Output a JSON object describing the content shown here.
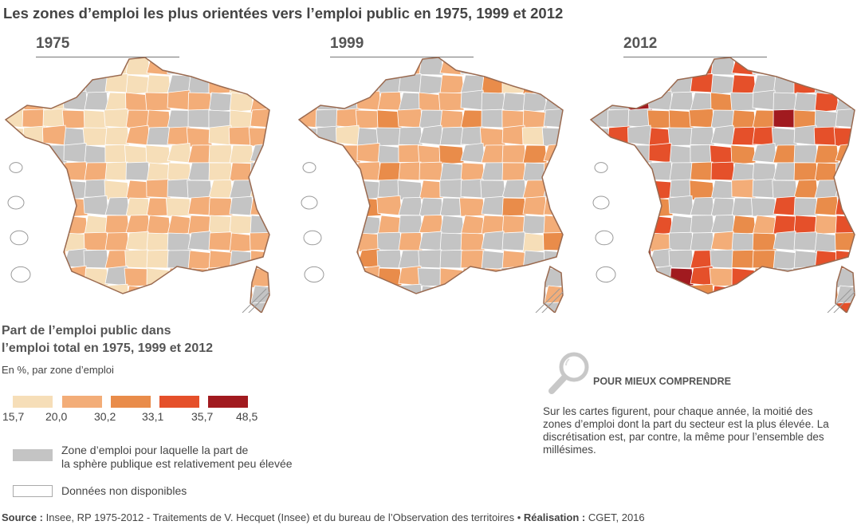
{
  "title": "Les zones d’emploi les plus orientées vers l’emploi public en 1975, 1999 et 2012",
  "maps": [
    {
      "year": "1975"
    },
    {
      "year": "1999"
    },
    {
      "year": "2012"
    }
  ],
  "legend": {
    "title_line1": "Part de l’emploi public dans",
    "title_line2": "l’emploi total en 1975, 1999 et 2012",
    "subtitle": "En %, par zone d’emploi",
    "classes": [
      {
        "from": "15,7",
        "to": "20,0",
        "color": "#f6deb8"
      },
      {
        "from": "20,0",
        "to": "30,2",
        "color": "#f3ad78"
      },
      {
        "from": "30,2",
        "to": "33,1",
        "color": "#e98c4a"
      },
      {
        "from": "33,1",
        "to": "35,7",
        "color": "#e5502a"
      },
      {
        "from": "35,7",
        "to": "48,5",
        "color": "#a11a1f"
      }
    ],
    "breaks": [
      "15,7",
      "20,0",
      "30,2",
      "33,1",
      "35,7",
      "48,5"
    ],
    "low_share_label_line1": "Zone d’emploi pour laquelle la part de",
    "low_share_label_line2": "la sphère publique est relativement peu élevée",
    "low_share_color": "#c4c4c4",
    "no_data_label": "Données non disponibles"
  },
  "info": {
    "heading": "POUR MIEUX COMPRENDRE",
    "text": "Sur les cartes figurent, pour chaque année, la moitié des zones d’emploi dont la part du secteur est la plus élevée. La discrétisation est, par contre, la même pour l’ensemble des millésimes."
  },
  "source": {
    "source_label": "Source :",
    "source_text": " Insee, RP 1975-2012 - Traitements de V. Hecquet (Insee) et du bureau de l’Observation des territoires • ",
    "credit_label": "Réalisation :",
    "credit_text": " CGET, 2016"
  }
}
